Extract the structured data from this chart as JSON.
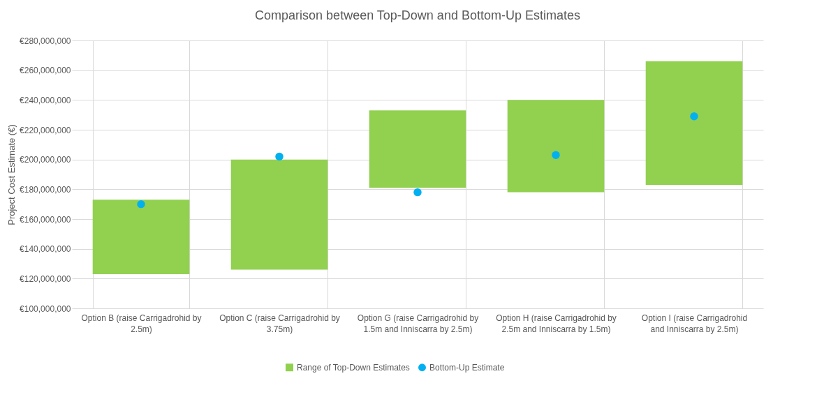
{
  "chart_data": {
    "type": "bar",
    "title": "Comparison between Top-Down and Bottom-Up Estimates",
    "ylabel": "Project Cost Estimate (€)",
    "categories": [
      "Option B (raise Carrigadrohid by 2.5m)",
      "Option C (raise Carrigadrohid by 3.75m)",
      "Option G (raise Carrigadrohid by 1.5m and Inniscarra by 2.5m)",
      "Option H (raise Carrigadrohid by 2.5m and Inniscarra by 1.5m)",
      "Option I (raise Carrigadrohid and Inniscarra by 2.5m)"
    ],
    "series": [
      {
        "name": "Range of Top-Down Estimates",
        "color": "#92d050",
        "base": [
          123000000,
          126000000,
          181000000,
          178000000,
          183000000
        ],
        "values": [
          50000000,
          74000000,
          52000000,
          62000000,
          83000000
        ]
      },
      {
        "name": "Bottom-Up Estimate",
        "type": "scatter",
        "color": "#00b0f0",
        "marker": "circle",
        "values": [
          170000000,
          202000000,
          178000000,
          203000000,
          229000000
        ]
      }
    ],
    "ylim": [
      100000000,
      280000000
    ],
    "yticks": [
      {
        "value": 100000000,
        "label": "€100,000,000"
      },
      {
        "value": 120000000,
        "label": "€120,000,000"
      },
      {
        "value": 140000000,
        "label": "€140,000,000"
      },
      {
        "value": 160000000,
        "label": "€160,000,000"
      },
      {
        "value": 180000000,
        "label": "€180,000,000"
      },
      {
        "value": 200000000,
        "label": "€200,000,000"
      },
      {
        "value": 220000000,
        "label": "€220,000,000"
      },
      {
        "value": 240000000,
        "label": "€240,000,000"
      },
      {
        "value": 260000000,
        "label": "€260,000,000"
      },
      {
        "value": 280000000,
        "label": "€280,000,000"
      }
    ],
    "grid": true,
    "legend": "bottom"
  }
}
